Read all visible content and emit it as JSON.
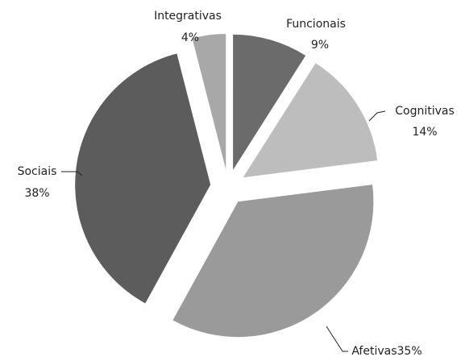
{
  "chart_data": {
    "type": "pie",
    "categories": [
      "Funcionais",
      "Cognitivas",
      "Afetivas",
      "Sociais",
      "Integrativas"
    ],
    "values": [
      9,
      14,
      35,
      38,
      4
    ],
    "value_labels": [
      "9%",
      "14%",
      "35%",
      "38%",
      "4%"
    ],
    "colors": [
      "#6b6b6b",
      "#bdbdbd",
      "#9a9a9a",
      "#5c5c5c",
      "#a8a8a8"
    ]
  }
}
